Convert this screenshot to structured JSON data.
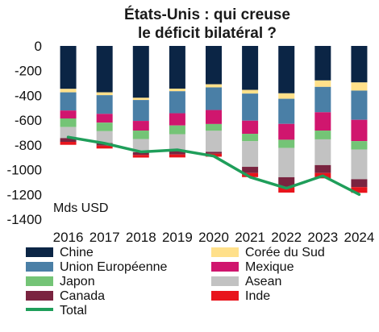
{
  "chart_data": {
    "type": "bar",
    "title_line1": "États-Unis : qui creuse",
    "title_line2": "le déficit bilatéral ?",
    "unit_label": "Mds USD",
    "categories": [
      "2016",
      "2017",
      "2018",
      "2019",
      "2020",
      "2021",
      "2022",
      "2023",
      "2024"
    ],
    "yticks": [
      "0",
      "-200",
      "-400",
      "-600",
      "-800",
      "-1000",
      "-1200",
      "-1400"
    ],
    "ylim": [
      -1400,
      0
    ],
    "series": [
      {
        "name": "Chine",
        "color": "#0b2545",
        "values": [
          -347,
          -375,
          -419,
          -345,
          -310,
          -355,
          -383,
          -279,
          -295
        ]
      },
      {
        "name": "Corée du Sud",
        "color": "#ffe08a",
        "values": [
          -28,
          -23,
          -18,
          -21,
          -25,
          -30,
          -44,
          -52,
          -66
        ]
      },
      {
        "name": "Union Européenne",
        "color": "#4a7fa6",
        "values": [
          -147,
          -151,
          -169,
          -178,
          -183,
          -219,
          -203,
          -205,
          -236
        ]
      },
      {
        "name": "Mexique",
        "color": "#d0166e",
        "values": [
          -64,
          -71,
          -78,
          -99,
          -113,
          -106,
          -128,
          -148,
          -172
        ]
      },
      {
        "name": "Japon",
        "color": "#74c476",
        "values": [
          -69,
          -69,
          -68,
          -70,
          -55,
          -60,
          -66,
          -71,
          -68
        ]
      },
      {
        "name": "Asean",
        "color": "#c2c2c2",
        "values": [
          -90,
          -96,
          -107,
          -137,
          -170,
          -207,
          -237,
          -208,
          -240
        ]
      },
      {
        "name": "Canada",
        "color": "#7a2440",
        "values": [
          -30,
          -21,
          -22,
          -27,
          -15,
          -50,
          -78,
          -64,
          -64
        ]
      },
      {
        "name": "Inde",
        "color": "#e8141c",
        "values": [
          -24,
          -23,
          -21,
          -24,
          -24,
          -33,
          -46,
          -43,
          -46
        ]
      }
    ],
    "total": {
      "name": "Total",
      "color": "#1f9e5a",
      "values": [
        -737,
        -787,
        -856,
        -840,
        -890,
        -1060,
        -1150,
        -1050,
        -1200
      ]
    }
  }
}
